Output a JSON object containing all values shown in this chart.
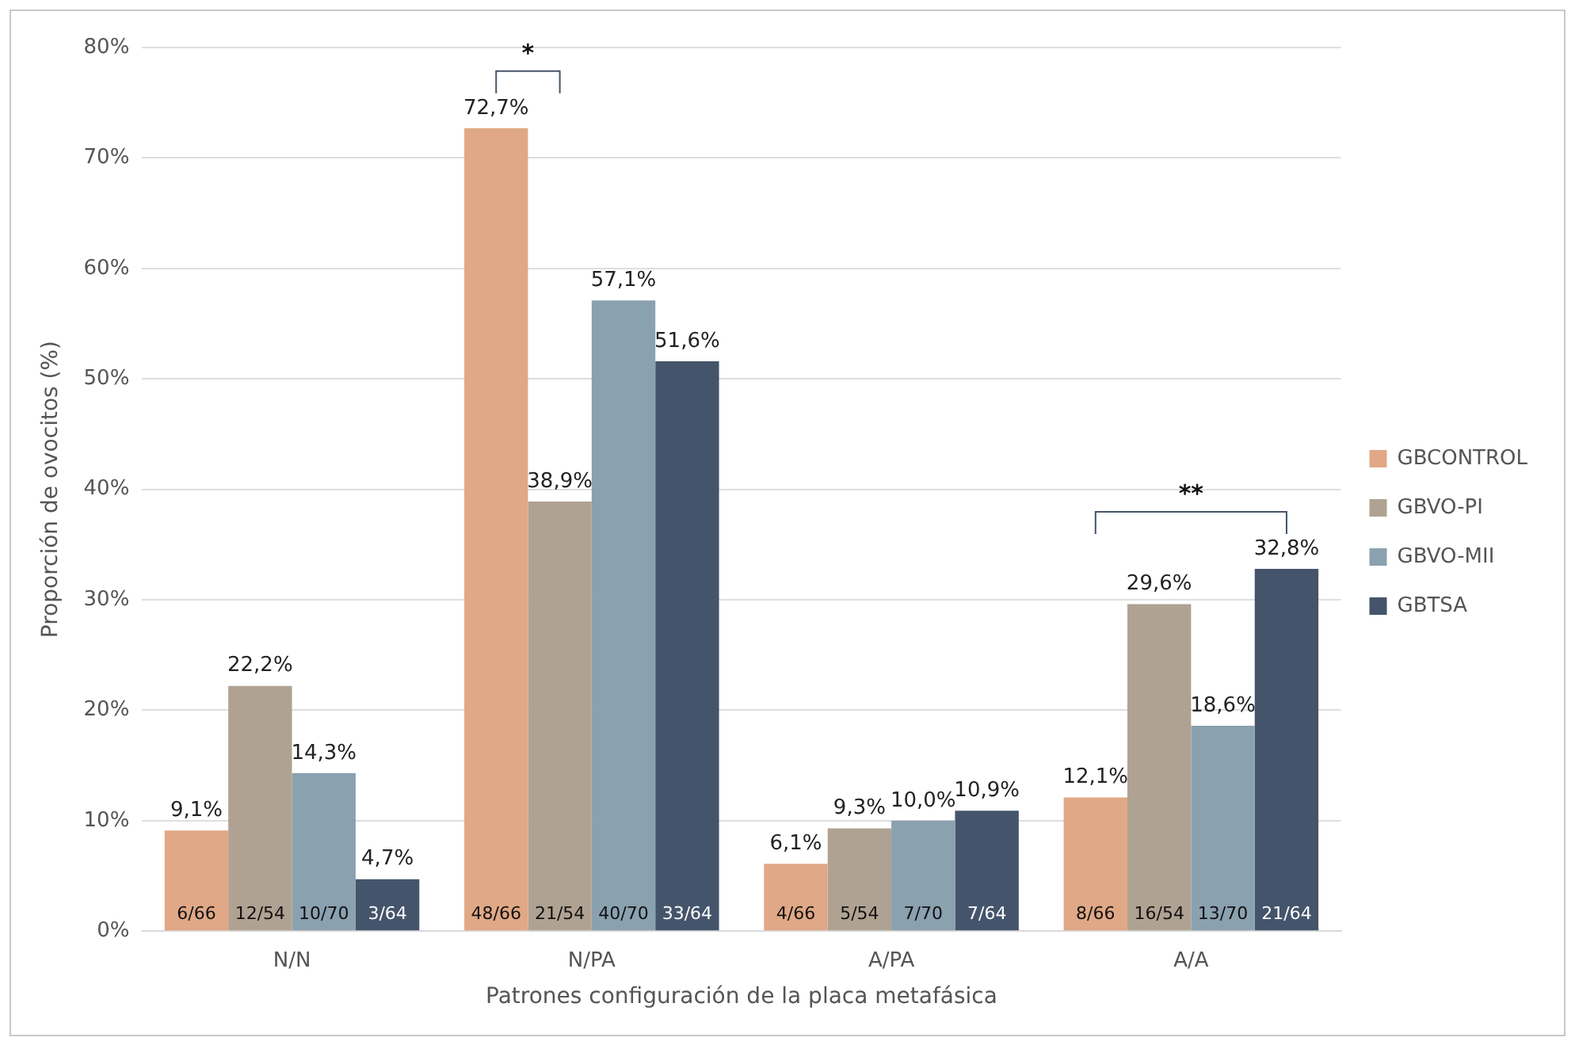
{
  "chart_data": {
    "type": "bar",
    "xlabel": "Patrones configuración de la placa metafásica",
    "ylabel": "Proporción de ovocitos (%)",
    "categories": [
      "N/N",
      "N/PA",
      "A/PA",
      "A/A"
    ],
    "series": [
      {
        "name": "GBCONTROL",
        "color": "#e0a886",
        "values": [
          9.1,
          72.7,
          6.1,
          12.1
        ],
        "value_labels": [
          "9,1%",
          "72,7%",
          "6,1%",
          "12,1%"
        ]
      },
      {
        "name": "GBVO-PI",
        "color": "#b0a292",
        "values": [
          22.2,
          38.9,
          9.3,
          29.6
        ],
        "value_labels": [
          "22,2%",
          "38,9%",
          "9,3%",
          "29,6%"
        ]
      },
      {
        "name": "GBVO-MII",
        "color": "#8aa1b0",
        "values": [
          14.3,
          57.1,
          10.0,
          18.6
        ],
        "value_labels": [
          "14,3%",
          "57,1%",
          "10,0%",
          "18,6%"
        ]
      },
      {
        "name": "GBTSA",
        "color": "#44546b",
        "values": [
          4.7,
          51.6,
          10.9,
          32.8
        ],
        "value_labels": [
          "4,7%",
          "51,6%",
          "10,9%",
          "32,8%"
        ]
      }
    ],
    "ylim": [
      0,
      80
    ],
    "yticks": [
      {
        "value": 0,
        "label": "0%"
      },
      {
        "value": 10,
        "label": "10%"
      },
      {
        "value": 20,
        "label": "20%"
      },
      {
        "value": 30,
        "label": "30%"
      },
      {
        "value": 40,
        "label": "40%"
      },
      {
        "value": 50,
        "label": "50%"
      },
      {
        "value": 60,
        "label": "60%"
      },
      {
        "value": 70,
        "label": "70%"
      },
      {
        "value": 80,
        "label": "80%"
      }
    ],
    "grid": "y",
    "legend": "right",
    "annotations": [
      "6/66",
      "12/54",
      "10/70",
      "3/64",
      "48/66",
      "21/54",
      "40/70",
      "33/64",
      "4/66",
      "5/54",
      "7/70",
      "7/64",
      "8/66",
      "16/54",
      "13/70",
      "21/64",
      "*",
      "**"
    ]
  }
}
